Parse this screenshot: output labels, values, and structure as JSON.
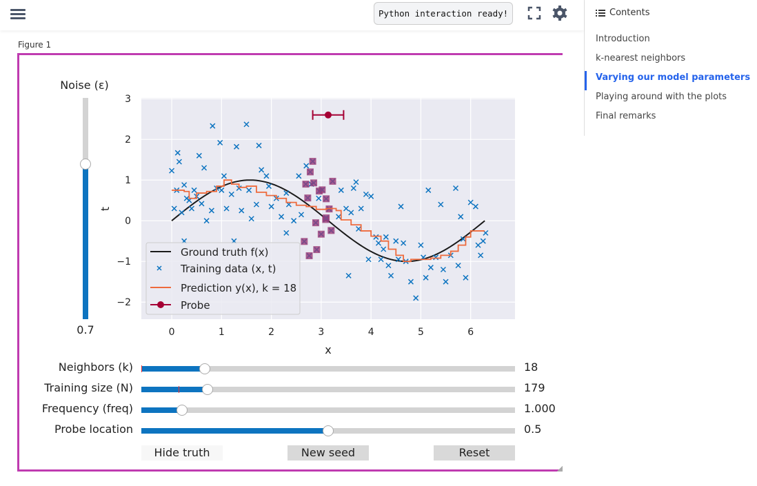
{
  "topbar": {
    "status": "Python interaction ready!"
  },
  "sidebar": {
    "title": "Contents",
    "items": [
      {
        "label": "Introduction",
        "active": false
      },
      {
        "label": "k-nearest neighbors",
        "active": false
      },
      {
        "label": "Varying our model parameters",
        "active": true
      },
      {
        "label": "Playing around with the plots",
        "active": false
      },
      {
        "label": "Final remarks",
        "active": false
      }
    ]
  },
  "figure": {
    "label": "Figure 1"
  },
  "noise": {
    "label": "Noise (ε)",
    "value": "0.7",
    "fraction": 0.7
  },
  "sliders": [
    {
      "label": "Neighbors (k)",
      "value": "18",
      "fraction": 0.17,
      "marker": 0.0
    },
    {
      "label": "Training size (N)",
      "value": "179",
      "fraction": 0.177,
      "marker": 0.1
    },
    {
      "label": "Frequency (freq)",
      "value": "1.000",
      "fraction": 0.109
    },
    {
      "label": "Probe location",
      "value": "0.5",
      "fraction": 0.5
    }
  ],
  "buttons": {
    "hide_truth": "Hide truth",
    "new_seed": "New seed",
    "reset": "Reset"
  },
  "colors": {
    "accent": "#bf3bb0",
    "slider": "#0d74c0",
    "truth": "#1a1a1a",
    "train": "#0d74c0",
    "pred": "#ee6a3c",
    "probe": "#a50034"
  },
  "chart_data": {
    "type": "scatter",
    "xlabel": "x",
    "ylabel": "t",
    "xlim": [
      -0.61,
      6.89
    ],
    "ylim": [
      -2.42,
      3.02
    ],
    "xticks": [
      "0",
      "1",
      "2",
      "3",
      "4",
      "5",
      "6"
    ],
    "yticks": [
      "-2",
      "-1",
      "0",
      "1",
      "2",
      "3"
    ],
    "legend": {
      "placement": "lower-left",
      "entries": [
        "Ground truth f(x)",
        "Training data (x, t)",
        "Prediction y(x), k = 18",
        "Probe"
      ]
    },
    "ground_truth": {
      "function": "sin(x)",
      "xrange": [
        0,
        6.283
      ]
    },
    "training": [
      [
        0,
        1.23
      ],
      [
        0.05,
        0.3
      ],
      [
        0.1,
        0.75
      ],
      [
        0.12,
        1.67
      ],
      [
        0.15,
        1.45
      ],
      [
        0.2,
        0.2
      ],
      [
        0.25,
        0.88
      ],
      [
        0.3,
        0.55
      ],
      [
        0.35,
        0.5
      ],
      [
        0.45,
        0.75
      ],
      [
        0.5,
        0.6
      ],
      [
        0.55,
        1.6
      ],
      [
        0.6,
        0.42
      ],
      [
        0.65,
        1.3
      ],
      [
        0.7,
        0.0
      ],
      [
        0.8,
        0.25
      ],
      [
        0.82,
        2.33
      ],
      [
        0.9,
        0.8
      ],
      [
        0.97,
        1.92
      ],
      [
        1.0,
        0.75
      ],
      [
        1.05,
        1.1
      ],
      [
        1.1,
        0.3
      ],
      [
        1.2,
        0.65
      ],
      [
        1.3,
        1.82
      ],
      [
        1.35,
        0.8
      ],
      [
        1.4,
        0.25
      ],
      [
        1.5,
        2.37
      ],
      [
        1.55,
        0.75
      ],
      [
        1.6,
        0.05
      ],
      [
        1.7,
        0.4
      ],
      [
        1.75,
        1.85
      ],
      [
        1.8,
        1.25
      ],
      [
        1.9,
        1.1
      ],
      [
        1.95,
        0.85
      ],
      [
        2.0,
        0.35
      ],
      [
        2.1,
        0.55
      ],
      [
        2.2,
        0.1
      ],
      [
        2.3,
        0.68
      ],
      [
        2.35,
        0.4
      ],
      [
        2.45,
        0.0
      ],
      [
        2.55,
        1.1
      ],
      [
        2.6,
        0.15
      ],
      [
        2.7,
        1.35
      ],
      [
        2.8,
        0.9
      ],
      [
        2.95,
        0.55
      ],
      [
        3.4,
        0.75
      ],
      [
        3.5,
        0.3
      ],
      [
        3.6,
        0.2
      ],
      [
        3.65,
        0.8
      ],
      [
        3.7,
        0.95
      ],
      [
        3.8,
        0.3
      ],
      [
        3.9,
        0.65
      ],
      [
        4.0,
        0.6
      ],
      [
        4.1,
        -0.4
      ],
      [
        4.2,
        -0.95
      ],
      [
        4.25,
        -0.7
      ],
      [
        4.3,
        -0.4
      ],
      [
        4.4,
        -1.35
      ],
      [
        4.5,
        -0.5
      ],
      [
        4.6,
        0.35
      ],
      [
        4.65,
        -0.55
      ],
      [
        4.7,
        -1.0
      ],
      [
        4.8,
        -1.5
      ],
      [
        4.9,
        -1.9
      ],
      [
        5.0,
        -0.6
      ],
      [
        5.1,
        -1.4
      ],
      [
        5.15,
        0.75
      ],
      [
        5.3,
        -0.9
      ],
      [
        5.4,
        0.4
      ],
      [
        5.45,
        -1.2
      ],
      [
        5.6,
        -0.85
      ],
      [
        5.7,
        0.8
      ],
      [
        5.8,
        0.1
      ],
      [
        5.9,
        -1.4
      ],
      [
        6.0,
        0.45
      ],
      [
        6.1,
        0.35
      ],
      [
        6.15,
        -0.6
      ],
      [
        6.25,
        -0.5
      ],
      [
        6.3,
        -0.3
      ],
      [
        3.55,
        -1.35
      ],
      [
        3.95,
        -0.95
      ],
      [
        4.55,
        -0.95
      ],
      [
        5.5,
        -1.5
      ],
      [
        5.2,
        -1.15
      ],
      [
        2.3,
        -0.3
      ],
      [
        1.25,
        -0.5
      ],
      [
        0.25,
        -0.5
      ],
      [
        4.35,
        -1.1
      ],
      [
        5.75,
        -1.1
      ],
      [
        6.2,
        -0.85
      ],
      [
        0.4,
        0.3
      ],
      [
        3.35,
        0.1
      ],
      [
        3.75,
        -0.2
      ],
      [
        4.15,
        -0.55
      ],
      [
        5.05,
        -0.9
      ],
      [
        5.85,
        -0.45
      ]
    ],
    "neighbors": [
      [
        2.83,
        1.46
      ],
      [
        2.78,
        1.2
      ],
      [
        2.69,
        0.9
      ],
      [
        2.85,
        0.93
      ],
      [
        2.96,
        0.73
      ],
      [
        3.02,
        0.76
      ],
      [
        3.23,
        0.97
      ],
      [
        2.73,
        0.56
      ],
      [
        3.1,
        0.54
      ],
      [
        3.16,
        0.29
      ],
      [
        3.09,
        0.03
      ],
      [
        3.1,
        0.07
      ],
      [
        2.89,
        -0.05
      ],
      [
        3.2,
        -0.24
      ],
      [
        3.0,
        -0.33
      ],
      [
        2.66,
        -0.51
      ],
      [
        2.91,
        -0.71
      ],
      [
        2.76,
        -0.86
      ]
    ],
    "prediction": [
      [
        0,
        0.75
      ],
      [
        0.25,
        0.72
      ],
      [
        0.35,
        0.55
      ],
      [
        0.5,
        0.68
      ],
      [
        0.7,
        0.72
      ],
      [
        0.9,
        0.85
      ],
      [
        1.05,
        1.0
      ],
      [
        1.2,
        0.9
      ],
      [
        1.35,
        0.82
      ],
      [
        1.5,
        0.85
      ],
      [
        1.7,
        0.7
      ],
      [
        1.9,
        0.62
      ],
      [
        2.1,
        0.55
      ],
      [
        2.3,
        0.45
      ],
      [
        2.5,
        0.38
      ],
      [
        2.7,
        0.35
      ],
      [
        2.9,
        0.28
      ],
      [
        3.1,
        0.3
      ],
      [
        3.3,
        0.25
      ],
      [
        3.4,
        0.02
      ],
      [
        3.6,
        -0.1
      ],
      [
        3.8,
        -0.25
      ],
      [
        4.0,
        -0.38
      ],
      [
        4.2,
        -0.5
      ],
      [
        4.35,
        -0.7
      ],
      [
        4.5,
        -0.85
      ],
      [
        4.65,
        -1.0
      ],
      [
        4.8,
        -0.95
      ],
      [
        5.0,
        -0.95
      ],
      [
        5.2,
        -0.92
      ],
      [
        5.4,
        -0.85
      ],
      [
        5.6,
        -0.75
      ],
      [
        5.75,
        -0.6
      ],
      [
        5.9,
        -0.4
      ],
      [
        6.0,
        -0.25
      ],
      [
        6.28,
        -0.25
      ]
    ],
    "probe": {
      "x": 3.14,
      "y": 2.6,
      "xerr": [
        2.83,
        3.45
      ]
    }
  }
}
